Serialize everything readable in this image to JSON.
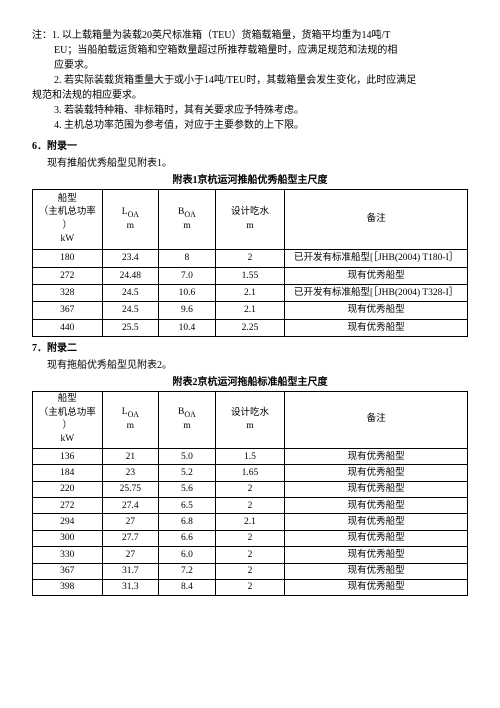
{
  "notes": {
    "n1a": "注：1. 以上载箱量为装载20英尺标准箱（TEU）货箱载箱量，货箱平均重为14吨/T",
    "n1b": "EU；当船舶载运货箱和空箱数量超过所推荐载箱量时，应满足规范和法规的相",
    "n1c": "应要求。",
    "n2a": "2. 若实际装载货箱重量大于或小于14吨/TEU时，其载箱量会发生变化，此时应满足",
    "n2b": "规范和法规的相应要求。",
    "n3": "3. 若装载特种箱、非标箱时，其有关要求应予特殊考虑。",
    "n4": "4. 主机总功率范围为参考值，对应于主要参数的上下限。"
  },
  "sec6": {
    "head": "6．附录一",
    "sub": "现有推船优秀船型见附表1。",
    "title": "附表1京杭运河推船优秀船型主尺度"
  },
  "sec7": {
    "head": "7．附录二",
    "sub": "现有拖船优秀船型见附表2。",
    "title": "附表2京杭运河拖船标准船型主尺度"
  },
  "hdr": {
    "c1a": "船型",
    "c1b": "（主机总功率",
    "c1c": "）",
    "c1d": "kW",
    "c2a": "L",
    "c2s": "OA",
    "c2b": "m",
    "c3a": "B",
    "c3s": "OA",
    "c3b": "m",
    "c4a": "设计吃水",
    "c4b": "m",
    "c5": "备注"
  },
  "t1": [
    {
      "a": "180",
      "b": "23.4",
      "c": "8",
      "d": "2",
      "e": "已开发有标准船型[［JHB(2004) T180-I］"
    },
    {
      "a": "272",
      "b": "24.48",
      "c": "7.0",
      "d": "1.55",
      "e": "现有优秀船型"
    },
    {
      "a": "328",
      "b": "24.5",
      "c": "10.6",
      "d": "2.1",
      "e": "已开发有标准船型[［JHB(2004) T328-I］"
    },
    {
      "a": "367",
      "b": "24.5",
      "c": "9.6",
      "d": "2.1",
      "e": "现有优秀船型"
    },
    {
      "a": "440",
      "b": "25.5",
      "c": "10.4",
      "d": "2.25",
      "e": "现有优秀船型"
    }
  ],
  "t2": [
    {
      "a": "136",
      "b": "21",
      "c": "5.0",
      "d": "1.5",
      "e": "现有优秀船型"
    },
    {
      "a": "184",
      "b": "23",
      "c": "5.2",
      "d": "1.65",
      "e": "现有优秀船型"
    },
    {
      "a": "220",
      "b": "25.75",
      "c": "5.6",
      "d": "2",
      "e": "现有优秀船型"
    },
    {
      "a": "272",
      "b": "27.4",
      "c": "6.5",
      "d": "2",
      "e": "现有优秀船型"
    },
    {
      "a": "294",
      "b": "27",
      "c": "6.8",
      "d": "2.1",
      "e": "现有优秀船型"
    },
    {
      "a": "300",
      "b": "27.7",
      "c": "6.6",
      "d": "2",
      "e": "现有优秀船型"
    },
    {
      "a": "330",
      "b": "27",
      "c": "6.0",
      "d": "2",
      "e": "现有优秀船型"
    },
    {
      "a": "367",
      "b": "31.7",
      "c": "7.2",
      "d": "2",
      "e": "现有优秀船型"
    },
    {
      "a": "398",
      "b": "31.3",
      "c": "8.4",
      "d": "2",
      "e": "现有优秀船型"
    }
  ]
}
